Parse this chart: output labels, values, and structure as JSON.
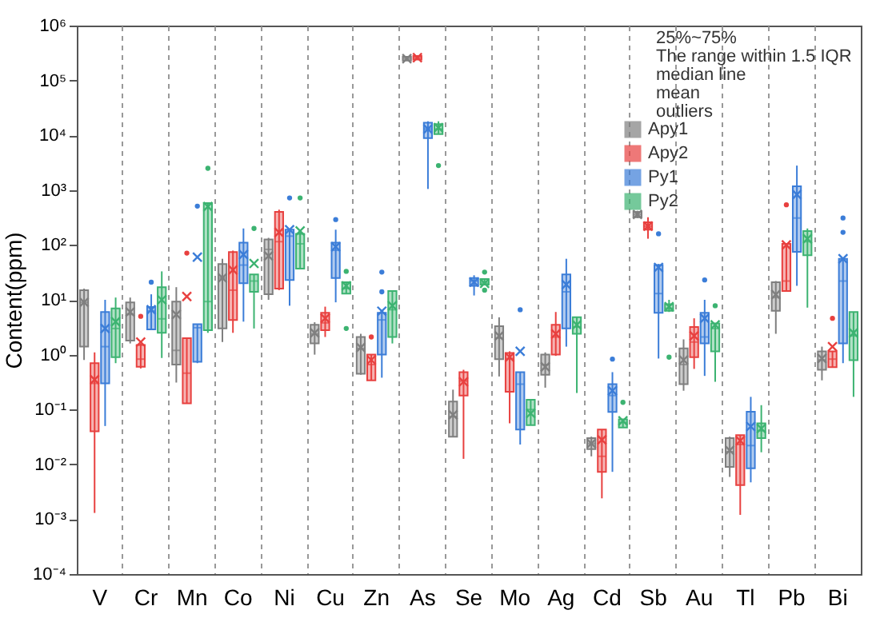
{
  "chart_data": {
    "type": "box",
    "ylabel": "Content(ppm)",
    "categories": [
      "V",
      "Cr",
      "Mn",
      "Co",
      "Ni",
      "Cu",
      "Zn",
      "As",
      "Se",
      "Mo",
      "Ag",
      "Cd",
      "Sb",
      "Au",
      "Tl",
      "Pb",
      "Bi"
    ],
    "log": true,
    "ylim": [
      0.0001,
      1000000
    ],
    "yticks": [
      {
        "value": 0.0001,
        "label": "10⁻⁴"
      },
      {
        "value": 0.001,
        "label": "10⁻³"
      },
      {
        "value": 0.01,
        "label": "10⁻²"
      },
      {
        "value": 0.1,
        "label": "10⁻¹"
      },
      {
        "value": 1,
        "label": "10⁰"
      },
      {
        "value": 10,
        "label": "10¹"
      },
      {
        "value": 100,
        "label": "10²"
      },
      {
        "value": 1000,
        "label": "10³"
      },
      {
        "value": 10000,
        "label": "10⁴"
      },
      {
        "value": 100000,
        "label": "10⁵"
      },
      {
        "value": 1000000,
        "label": "10⁶"
      }
    ],
    "grid": "x",
    "legend": "top right",
    "annotations": [
      "25%~75%",
      "The range within 1.5 IQR",
      "median line",
      "mean",
      "outliers"
    ],
    "series": [
      {
        "name": "Apy1",
        "color": "#7f7f7f",
        "boxes": [
          {
            "low": 0.8,
            "q1": 1.4,
            "median": 9,
            "q3": 15,
            "high": 16,
            "mean": 9
          },
          {
            "low": 1.6,
            "q1": 1.8,
            "median": 5.4,
            "q3": 9,
            "high": 11,
            "mean": 6
          },
          {
            "low": 0.31,
            "q1": 0.66,
            "median": 1.2,
            "q3": 9.3,
            "high": 17,
            "mean": 5.4
          },
          {
            "low": 1.7,
            "q1": 3,
            "median": 25,
            "q3": 45,
            "high": 56,
            "mean": 25
          },
          {
            "low": 10,
            "q1": 12.6,
            "median": 83,
            "q3": 126,
            "high": 135,
            "mean": 63
          },
          {
            "low": 1,
            "q1": 1.6,
            "median": 2.4,
            "q3": 3.5,
            "high": 3.9,
            "mean": 2.5
          },
          {
            "low": 0.43,
            "q1": 0.45,
            "median": 1.3,
            "q3": 2.1,
            "high": 2.4,
            "mean": 1.35
          },
          {
            "low": 230000,
            "q1": 230000,
            "median": 250000,
            "q3": 270000,
            "high": 270000,
            "mean": 250000
          },
          {
            "low": 0.032,
            "q1": 0.032,
            "median": 0.074,
            "q3": 0.14,
            "high": 0.23,
            "mean": 0.08
          },
          {
            "low": 0.4,
            "q1": 0.83,
            "median": 2,
            "q3": 3.3,
            "high": 4.8,
            "mean": 2.2
          },
          {
            "low": 0.25,
            "q1": 0.43,
            "median": 0.66,
            "q3": 1,
            "high": 1.1,
            "mean": 0.6
          },
          {
            "low": 0.014,
            "q1": 0.019,
            "median": 0.024,
            "q3": 0.03,
            "high": 0.032,
            "mean": 0.024
          },
          {
            "low": 310,
            "q1": 320,
            "median": 360,
            "q3": 400,
            "high": 420,
            "mean": 360
          },
          {
            "low": 0.22,
            "q1": 0.29,
            "median": 0.66,
            "q3": 1.3,
            "high": 1.9,
            "mean": 0.8
          },
          {
            "low": 0.0059,
            "q1": 0.009,
            "median": 0.017,
            "q3": 0.03,
            "high": 0.032,
            "mean": 0.018
          },
          {
            "low": 2.4,
            "q1": 6.3,
            "median": 11,
            "q3": 21,
            "high": 22,
            "mean": 12.5
          },
          {
            "low": 0.34,
            "q1": 0.53,
            "median": 0.8,
            "q3": 1.15,
            "high": 1.4,
            "mean": 0.85
          }
        ]
      },
      {
        "name": "Apy2",
        "color": "#e8403f",
        "boxes": [
          {
            "low": 0.0013,
            "q1": 0.04,
            "median": 0.3,
            "q3": 0.7,
            "high": 1.1,
            "mean": 0.35
          },
          {
            "low": 0.56,
            "q1": 0.6,
            "median": 0.83,
            "q3": 1.5,
            "high": 1.6,
            "mean": 1.7,
            "outliers": [
              5
            ]
          },
          {
            "low": 0.13,
            "q1": 0.13,
            "median": 0.46,
            "q3": 2,
            "high": 2,
            "mean": 11.5,
            "outliers": [
              71
            ]
          },
          {
            "low": 2.5,
            "q1": 4.3,
            "median": 15,
            "q3": 74,
            "high": 79,
            "mean": 35
          },
          {
            "low": 15,
            "q1": 16,
            "median": 115,
            "q3": 400,
            "high": 440,
            "mean": 170
          },
          {
            "low": 2.1,
            "q1": 2.8,
            "median": 3.8,
            "q3": 5.8,
            "high": 7.5,
            "mean": 4.6
          },
          {
            "low": 0.34,
            "q1": 0.34,
            "median": 0.66,
            "q3": 1,
            "high": 1,
            "mean": 0.8,
            "outliers": [
              2.1
            ]
          },
          {
            "low": 240000,
            "q1": 240000,
            "median": 260000,
            "q3": 280000,
            "high": 280000,
            "mean": 260000
          },
          {
            "low": 0.0126,
            "q1": 0.18,
            "median": 0.33,
            "q3": 0.48,
            "high": 0.53,
            "mean": 0.32
          },
          {
            "low": 0.056,
            "q1": 0.21,
            "median": 0.85,
            "q3": 1.07,
            "high": 1.15,
            "mean": 0.9
          },
          {
            "low": 0.95,
            "q1": 1,
            "median": 2.1,
            "q3": 3.5,
            "high": 6,
            "mean": 2.4
          },
          {
            "low": 0.0024,
            "q1": 0.0073,
            "median": 0.014,
            "q3": 0.043,
            "high": 0.043,
            "mean": 0.028
          },
          {
            "low": 130,
            "q1": 190,
            "median": 220,
            "q3": 260,
            "high": 320,
            "mean": 220
          },
          {
            "low": 0.55,
            "q1": 0.9,
            "median": 1.7,
            "q3": 3.2,
            "high": 4.6,
            "mean": 2.2
          },
          {
            "low": 0.0012,
            "q1": 0.0042,
            "median": 0.023,
            "q3": 0.034,
            "high": 0.034,
            "mean": 0.027
          },
          {
            "low": 14.5,
            "q1": 14.5,
            "median": 22,
            "q3": 105,
            "high": 105,
            "mean": 100,
            "outliers": [
              540
            ]
          },
          {
            "low": 0.59,
            "q1": 0.59,
            "median": 0.83,
            "q3": 1.15,
            "high": 1.15,
            "mean": 1.4,
            "outliers": [
              4.6
            ]
          }
        ]
      },
      {
        "name": "Py1",
        "color": "#3b7dd8",
        "boxes": [
          {
            "low": 0.05,
            "q1": 0.3,
            "median": 1.4,
            "q3": 6,
            "high": 10,
            "mean": 3
          },
          {
            "low": 2.8,
            "q1": 2.9,
            "median": 6.3,
            "q3": 7.4,
            "high": 12.6,
            "mean": 6.6,
            "outliers": [
              21
            ]
          },
          {
            "low": 0.7,
            "q1": 0.74,
            "median": 3.1,
            "q3": 3.6,
            "high": 3.6,
            "mean": 60,
            "outliers": [
              510
            ]
          },
          {
            "low": 4,
            "q1": 20,
            "median": 43,
            "q3": 110,
            "high": 200,
            "mean": 67
          },
          {
            "low": 7.8,
            "q1": 23,
            "median": 145,
            "q3": 190,
            "high": 190,
            "mean": 190,
            "outliers": [
              720
            ]
          },
          {
            "low": 9,
            "q1": 25,
            "median": 80,
            "q3": 110,
            "high": 190,
            "mean": 93,
            "outliers": [
              290
            ]
          },
          {
            "low": 0.38,
            "q1": 1,
            "median": 4.3,
            "q3": 5.8,
            "high": 6.5,
            "mean": 6.2,
            "outliers": [
              14,
              32
            ]
          },
          {
            "low": 1050,
            "q1": 8900,
            "median": 13000,
            "q3": 17000,
            "high": 18000,
            "mean": 13000
          },
          {
            "low": 12,
            "q1": 18,
            "median": 22,
            "q3": 25,
            "high": 28,
            "mean": 21
          },
          {
            "low": 0.023,
            "q1": 0.043,
            "median": 0.29,
            "q3": 0.48,
            "high": 0.48,
            "mean": 1.15,
            "outliers": [
              6.6
            ]
          },
          {
            "low": 1.4,
            "q1": 3,
            "median": 14,
            "q3": 29,
            "high": 56,
            "mean": 19
          },
          {
            "low": 0.0073,
            "q1": 0.09,
            "median": 0.18,
            "q3": 0.29,
            "high": 0.48,
            "mean": 0.22,
            "outliers": [
              0.83
            ]
          },
          {
            "low": 0.85,
            "q1": 5.8,
            "median": 13,
            "q3": 43,
            "high": 45,
            "mean": 39,
            "outliers": [
              160
            ]
          },
          {
            "low": 0.41,
            "q1": 1.6,
            "median": 2.1,
            "q3": 5.8,
            "high": 10,
            "mean": 4.6,
            "outliers": [
              23
            ]
          },
          {
            "low": 0.0047,
            "q1": 0.0085,
            "median": 0.022,
            "q3": 0.091,
            "high": 0.17,
            "mean": 0.049
          },
          {
            "low": 18,
            "q1": 75,
            "median": 310,
            "q3": 1170,
            "high": 2800,
            "mean": 830
          },
          {
            "low": 0.7,
            "q1": 1.6,
            "median": 22,
            "q3": 56,
            "high": 56,
            "mean": 56,
            "outliers": [
              170,
              310
            ]
          }
        ]
      },
      {
        "name": "Py2",
        "color": "#3cb371",
        "boxes": [
          {
            "low": 0.7,
            "q1": 0.9,
            "median": 3,
            "q3": 7,
            "high": 11,
            "mean": 4
          },
          {
            "low": 0.87,
            "q1": 2.5,
            "median": 4.5,
            "q3": 17,
            "high": 33,
            "mean": 10
          },
          {
            "low": 2.5,
            "q1": 2.8,
            "median": 9.3,
            "q3": 580,
            "high": 580,
            "mean": 500,
            "outliers": [
              2500
            ]
          },
          {
            "low": 3,
            "q1": 14,
            "median": 22,
            "q3": 29,
            "high": 29,
            "mean": 46,
            "outliers": [
              200
            ]
          },
          {
            "low": 37,
            "q1": 37,
            "median": 105,
            "q3": 160,
            "high": 190,
            "mean": 180,
            "outliers": [
              720
            ]
          },
          {
            "low": 13,
            "q1": 13,
            "median": 16,
            "q3": 21,
            "high": 21,
            "mean": 18,
            "outliers": [
              3,
              33
            ]
          },
          {
            "low": 1.6,
            "q1": 2.1,
            "median": 6.6,
            "q3": 14.5,
            "high": 14.5,
            "mean": 7.8
          },
          {
            "low": 10500,
            "q1": 10500,
            "median": 13000,
            "q3": 16000,
            "high": 18000,
            "mean": 13800,
            "outliers": [
              2800
            ]
          },
          {
            "low": 18.5,
            "q1": 19,
            "median": 20,
            "q3": 24,
            "high": 24,
            "mean": 20,
            "outliers": [
              15,
              32
            ]
          },
          {
            "low": 0.052,
            "q1": 0.052,
            "median": 0.1,
            "q3": 0.15,
            "high": 0.15,
            "mean": 0.085
          },
          {
            "low": 0.2,
            "q1": 2.4,
            "median": 3.2,
            "q3": 4.8,
            "high": 4.8,
            "mean": 3.5
          },
          {
            "low": 0.047,
            "q1": 0.047,
            "median": 0.058,
            "q3": 0.066,
            "high": 0.066,
            "mean": 0.062,
            "outliers": [
              0.135
            ]
          },
          {
            "low": 6,
            "q1": 6.3,
            "median": 7,
            "q3": 8.3,
            "high": 10,
            "mean": 7.5,
            "outliers": [
              0.9
            ]
          },
          {
            "low": 0.32,
            "q1": 1.15,
            "median": 3,
            "q3": 3.7,
            "high": 3.7,
            "mean": 3.5,
            "outliers": [
              7.8
            ]
          },
          {
            "low": 0.0166,
            "q1": 0.03,
            "median": 0.041,
            "q3": 0.056,
            "high": 0.12,
            "mean": 0.045
          },
          {
            "low": 7.2,
            "q1": 65,
            "median": 115,
            "q3": 180,
            "high": 200,
            "mean": 130
          },
          {
            "low": 0.17,
            "q1": 0.79,
            "median": 2.2,
            "q3": 6,
            "high": 6,
            "mean": 2.5
          }
        ]
      }
    ]
  }
}
